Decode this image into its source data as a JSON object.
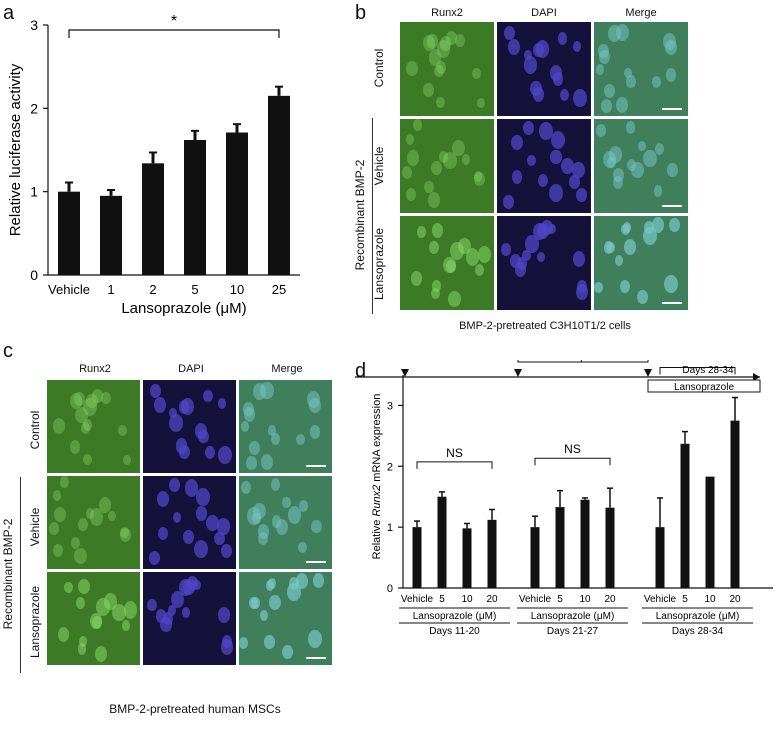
{
  "panels": {
    "a": "a",
    "b": "b",
    "c": "c",
    "d": "d"
  },
  "chart_data": [
    {
      "type": "bar",
      "categories": [
        "Vehicle",
        "1",
        "2",
        "5",
        "10",
        "25"
      ],
      "values": [
        1.0,
        0.95,
        1.34,
        1.62,
        1.71,
        2.15
      ],
      "errors": [
        0.11,
        0.07,
        0.13,
        0.11,
        0.1,
        0.11
      ],
      "xlabel": "Lansoprazole (μM)",
      "ylabel": "Relative luciferase activity",
      "ylim": [
        0,
        3
      ],
      "yticks": [
        "0",
        "1",
        "2",
        "3"
      ],
      "significance": "*",
      "color": "#111111"
    },
    {
      "type": "bar",
      "ylabel_parts": [
        "Relative ",
        "Runx2",
        " mRNA expression"
      ],
      "ylim": [
        0,
        3.5
      ],
      "yticks": [
        "0",
        "1",
        "2",
        "3"
      ],
      "group_xlabel": "Lansoprazole (μM)",
      "groups": [
        {
          "name": "Days 11-20",
          "categories": [
            "Vehicle",
            "5",
            "10",
            "20"
          ],
          "values": [
            1.0,
            1.5,
            0.98,
            1.12
          ],
          "errors": [
            0.1,
            0.08,
            0.08,
            0.17
          ],
          "significance": "NS"
        },
        {
          "name": "Days 21-27",
          "categories": [
            "Vehicle",
            "5",
            "10",
            "20"
          ],
          "values": [
            1.0,
            1.33,
            1.45,
            1.32
          ],
          "errors": [
            0.18,
            0.27,
            0.03,
            0.32
          ],
          "significance": "NS"
        },
        {
          "name": "Days 28-34",
          "categories": [
            "Vehicle",
            "5",
            "10",
            "20"
          ],
          "values": [
            1.0,
            2.37,
            1.83,
            2.75
          ],
          "errors": [
            0.48,
            0.2,
            0.0,
            0.38
          ],
          "significance": "*"
        }
      ],
      "timeline": [
        {
          "label": "Days 11-20",
          "drug": "Lansoprazole"
        },
        {
          "label": "Days 21-27",
          "drug": "Lansoprazole"
        },
        {
          "label": "Days 28-34",
          "drug": "Lansoprazole"
        }
      ]
    }
  ],
  "panel_b": {
    "columns": [
      "Runx2",
      "DAPI",
      "Merge"
    ],
    "rows": [
      "Control",
      "Vehicle",
      "Lansoprazole"
    ],
    "group_label": "Recombinant BMP-2",
    "caption": "BMP-2-pretreated C3H10T1/2 cells"
  },
  "panel_c": {
    "columns": [
      "Runx2",
      "DAPI",
      "Merge"
    ],
    "rows": [
      "Control",
      "Vehicle",
      "Lansoprazole"
    ],
    "group_label": "Recombinant BMP-2",
    "caption": "BMP-2-pretreated human MSCs"
  },
  "colors": {
    "runx2": "#3c7a26",
    "dapi": "#14123a",
    "merge": "#3f7f5c",
    "bar": "#111111"
  }
}
